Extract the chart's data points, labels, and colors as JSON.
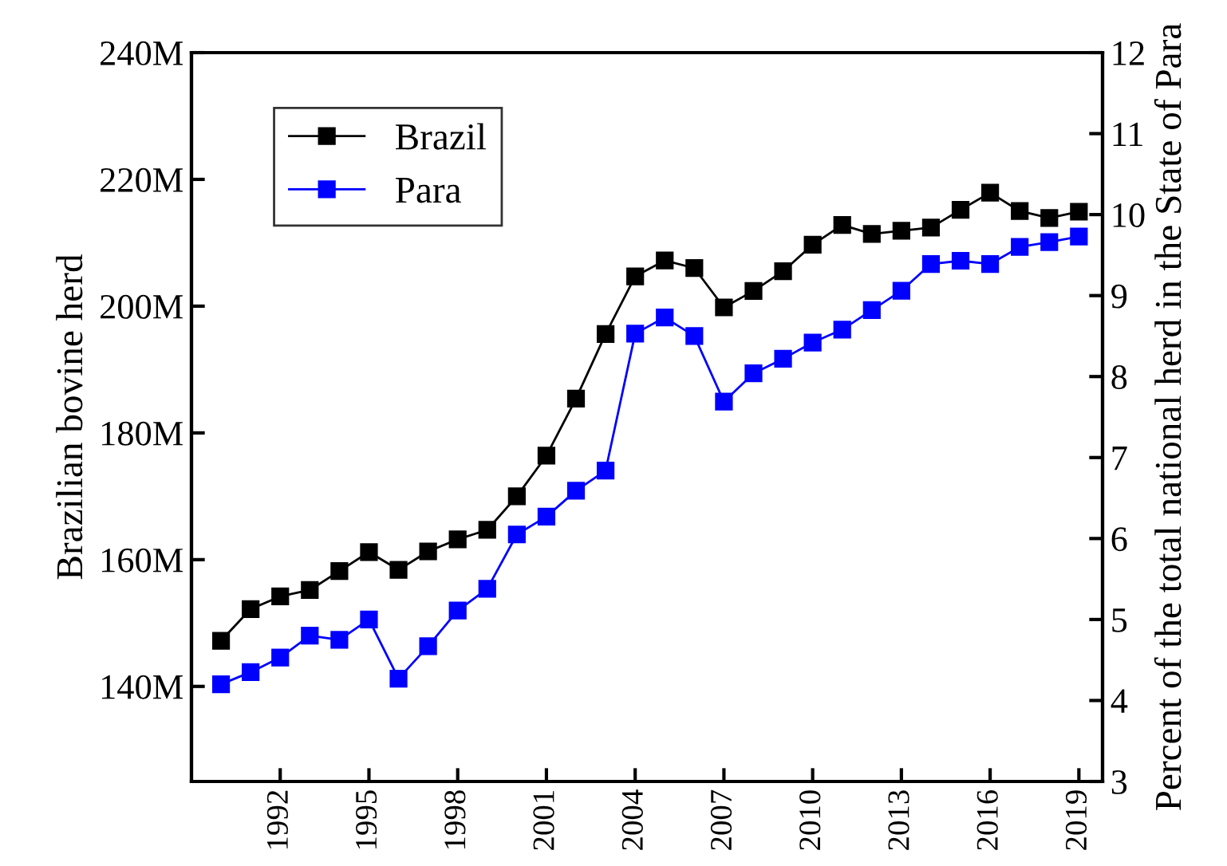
{
  "chart_data": {
    "type": "line",
    "ylabel": "Brazilian bovine herd",
    "y2label": "Percent of the total national herd in the State of Para",
    "x": [
      1990,
      1991,
      1992,
      1993,
      1994,
      1995,
      1996,
      1997,
      1998,
      1999,
      2000,
      2001,
      2002,
      2003,
      2004,
      2005,
      2006,
      2007,
      2008,
      2009,
      2010,
      2011,
      2012,
      2013,
      2014,
      2015,
      2016,
      2017,
      2018,
      2019
    ],
    "series": [
      {
        "name": "Brazil",
        "color": "#000000",
        "values": [
          147.2,
          152.2,
          154.2,
          155.2,
          158.2,
          161.2,
          158.4,
          161.3,
          163.2,
          164.7,
          170.0,
          176.4,
          185.4,
          195.6,
          204.7,
          207.2,
          206.0,
          199.8,
          202.4,
          205.5,
          209.7,
          212.8,
          211.4,
          211.9,
          212.4,
          215.2,
          217.9,
          215.0,
          213.9,
          214.9
        ]
      },
      {
        "name": "Para",
        "color": "#0000ff",
        "axis": "y2",
        "values": [
          4.2,
          4.35,
          4.53,
          4.8,
          4.75,
          5.0,
          4.27,
          4.67,
          5.11,
          5.38,
          6.05,
          6.27,
          6.59,
          6.84,
          8.53,
          8.73,
          8.5,
          7.69,
          8.04,
          8.22,
          8.42,
          8.58,
          8.82,
          9.06,
          9.39,
          9.43,
          9.39,
          9.6,
          9.66,
          9.73
        ]
      }
    ],
    "xlim": [
      1989,
      2019.8
    ],
    "xticks": [
      1992,
      1995,
      1998,
      2001,
      2004,
      2007,
      2010,
      2013,
      2016,
      2019
    ],
    "ylim": [
      125,
      240
    ],
    "yticks": [
      {
        "value": 140,
        "label": "140M"
      },
      {
        "value": 160,
        "label": "160M"
      },
      {
        "value": 180,
        "label": "180M"
      },
      {
        "value": 200,
        "label": "200M"
      },
      {
        "value": 220,
        "label": "220M"
      },
      {
        "value": 240,
        "label": "240M"
      }
    ],
    "y2lim": [
      3,
      12
    ],
    "y2ticks": [
      3,
      4,
      5,
      6,
      7,
      8,
      9,
      10,
      11,
      12
    ],
    "marker": "square",
    "line_style": "solid",
    "legend": "top left",
    "grid": false
  }
}
